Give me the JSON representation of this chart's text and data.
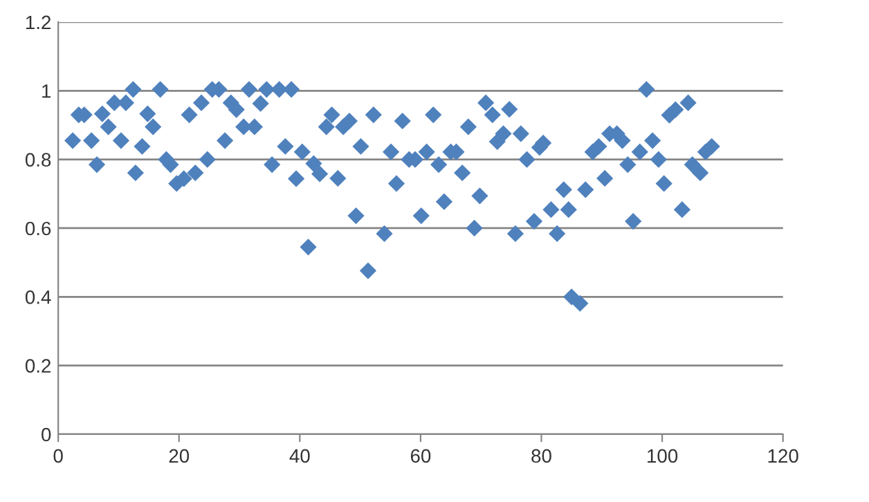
{
  "chart_data": {
    "type": "scatter",
    "marker": "diamond",
    "grid": "y",
    "xlim": [
      0,
      120
    ],
    "xticks": [
      0,
      20,
      40,
      60,
      80,
      100,
      120
    ],
    "ylim": [
      0,
      1.2
    ],
    "yticks": [
      0,
      0.2,
      0.4,
      0.6,
      0.8,
      1,
      1.2
    ],
    "series": [
      {
        "color": "#4f81bd",
        "x": [
          2.4,
          3.4,
          4.3,
          5.5,
          6.4,
          7.3,
          8.3,
          9.3,
          10.4,
          11.2,
          12.4,
          12.8,
          13.9,
          14.8,
          15.7,
          16.9,
          17.9,
          18.6,
          19.6,
          20.8,
          21.7,
          22.7,
          23.7,
          24.7,
          25.5,
          26.6,
          27.6,
          28.6,
          29.5,
          30.7,
          31.6,
          32.5,
          33.5,
          34.5,
          35.4,
          36.6,
          37.6,
          38.6,
          39.4,
          40.4,
          41.4,
          42.3,
          43.3,
          44.4,
          45.3,
          46.3,
          47.2,
          48.2,
          49.3,
          50.1,
          51.3,
          52.2,
          54,
          55.1,
          56,
          57,
          58.1,
          59.1,
          60.1,
          61,
          62.1,
          63,
          63.9,
          65,
          65.9,
          66.9,
          67.9,
          68.9,
          69.8,
          70.8,
          71.9,
          72.7,
          73.7,
          74.7,
          75.7,
          76.6,
          77.6,
          78.8,
          79.7,
          80.3,
          81.6,
          82.6,
          83.7,
          84.5,
          85.0,
          86.4,
          87.3,
          88.5,
          89.5,
          90.5,
          91.3,
          92.5,
          93.4,
          94.3,
          95.2,
          96.3,
          97.4,
          98.4,
          99.4,
          100.3,
          101.2,
          102.2,
          103.3,
          104.3,
          105,
          106.3,
          107.2,
          108.2
        ],
        "values": [
          0.855,
          0.93,
          0.93,
          0.855,
          0.785,
          0.933,
          0.895,
          0.965,
          0.855,
          0.965,
          1.004,
          0.761,
          0.838,
          0.933,
          0.895,
          1.004,
          0.8,
          0.785,
          0.73,
          0.744,
          0.93,
          0.761,
          0.965,
          0.8,
          1.004,
          1.004,
          0.855,
          0.965,
          0.945,
          0.895,
          1.004,
          0.895,
          0.963,
          1.004,
          0.785,
          1.004,
          0.838,
          1.004,
          0.744,
          0.822,
          0.545,
          0.788,
          0.758,
          0.895,
          0.93,
          0.745,
          0.895,
          0.912,
          0.636,
          0.838,
          0.476,
          0.93,
          0.584,
          0.822,
          0.73,
          0.912,
          0.8,
          0.8,
          0.636,
          0.822,
          0.93,
          0.785,
          0.677,
          0.822,
          0.822,
          0.761,
          0.895,
          0.6,
          0.694,
          0.965,
          0.93,
          0.852,
          0.875,
          0.946,
          0.584,
          0.875,
          0.8,
          0.62,
          0.835,
          0.848,
          0.654,
          0.584,
          0.712,
          0.654,
          0.4,
          0.381,
          0.712,
          0.822,
          0.838,
          0.745,
          0.875,
          0.875,
          0.855,
          0.785,
          0.62,
          0.822,
          1.004,
          0.855,
          0.8,
          0.73,
          0.929,
          0.945,
          0.654,
          0.965,
          0.785,
          0.761,
          0.822,
          0.838
        ]
      }
    ]
  }
}
